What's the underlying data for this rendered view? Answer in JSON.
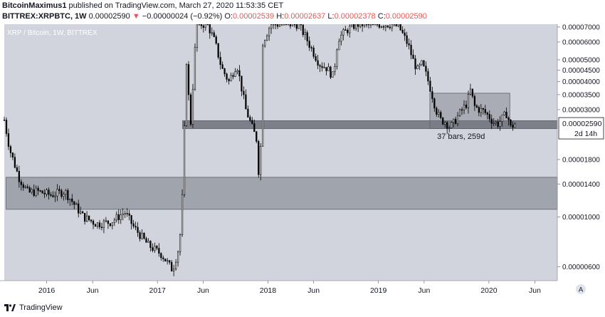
{
  "header": {
    "author": "BitcoinMaximus1",
    "published": "published on TradingView.com, March 27, 2020 11:53:35 CET",
    "symbol": "BITTREX:XRPBTC, 1W",
    "last": "0.00002590",
    "arrow": "▼",
    "change": "−0.00000024 (−0.92%)",
    "o_label": "O:",
    "o_value": "0.00002539",
    "h_label": "H:",
    "h_value": "0.00002637",
    "l_label": "L:",
    "l_value": "0.00002378",
    "c_label": "C:",
    "c_value": "0.00002590"
  },
  "footer": {
    "logo_text": "TradingView"
  },
  "colors": {
    "plot_bg": "#d1d4dc",
    "candle": "#000000",
    "zone_fill": "#787b86",
    "price_label_bg": "#ffffff",
    "header_red": "#ef5350"
  },
  "chart_data": {
    "type": "candlestick",
    "title": "XRP / Bitcoin, 1W, BITTREX",
    "y_scale": "log",
    "ylim": [
      5.2e-06,
      7.2e-05
    ],
    "y_ticks": [
      {
        "v": 7e-05,
        "label": "0.00007000"
      },
      {
        "v": 6e-05,
        "label": "0.00006000"
      },
      {
        "v": 5e-05,
        "label": "0.00005000"
      },
      {
        "v": 4.5e-05,
        "label": "0.00004500"
      },
      {
        "v": 4e-05,
        "label": "0.00004000"
      },
      {
        "v": 3.5e-05,
        "label": "0.00003500"
      },
      {
        "v": 3e-05,
        "label": "0.00003000"
      },
      {
        "v": 1.8e-05,
        "label": "0.00001800"
      },
      {
        "v": 1.4e-05,
        "label": "0.00001400"
      },
      {
        "v": 1e-05,
        "label": "0.00001000"
      },
      {
        "v": 6e-06,
        "label": "0.00000600"
      }
    ],
    "x_ticks": [
      {
        "date": "2016-01-01",
        "label": "2016"
      },
      {
        "date": "2016-06-01",
        "label": "Jun"
      },
      {
        "date": "2017-01-01",
        "label": "2017"
      },
      {
        "date": "2017-06-01",
        "label": "Jun"
      },
      {
        "date": "2018-01-01",
        "label": "2018"
      },
      {
        "date": "2018-06-01",
        "label": "Jun"
      },
      {
        "date": "2019-01-01",
        "label": "2019"
      },
      {
        "date": "2019-06-01",
        "label": "Jun"
      },
      {
        "date": "2020-01-01",
        "label": "2020"
      },
      {
        "date": "2020-06-01",
        "label": "Jun"
      }
    ],
    "x_range": [
      "2015-08-14",
      "2020-08-14"
    ],
    "last_price": {
      "value": 2.59e-05,
      "label": "0.00002590",
      "countdown": "2d 14h"
    },
    "zones": [
      {
        "from": "2017-03-25",
        "to": "2020-08-14",
        "low": 2.47e-05,
        "high": 2.68e-05
      },
      {
        "from": "2015-08-20",
        "to": "2020-08-14",
        "low": 1.08e-05,
        "high": 1.5e-05
      },
      {
        "from": "2019-06-20",
        "to": "2020-03-10",
        "low": 2.47e-05,
        "high": 3.55e-05
      }
    ],
    "annotations": [
      {
        "text": "37 bars, 259d",
        "date": "2019-10-01",
        "value": 2.22e-05
      }
    ],
    "corner_badge": "A",
    "series": [
      {
        "date": "2015-08-14",
        "close": 2.7e-05
      },
      {
        "date": "2015-09-01",
        "close": 2e-05
      },
      {
        "date": "2015-10-01",
        "close": 1.5e-05
      },
      {
        "date": "2015-11-01",
        "close": 1.28e-05
      },
      {
        "date": "2015-12-01",
        "close": 1.3e-05
      },
      {
        "date": "2016-01-15",
        "close": 1.25e-05
      },
      {
        "date": "2016-03-01",
        "close": 1.3e-05
      },
      {
        "date": "2016-05-01",
        "close": 1e-05
      },
      {
        "date": "2016-06-15",
        "close": 9.3e-06
      },
      {
        "date": "2016-08-01",
        "close": 9.5e-06
      },
      {
        "date": "2016-09-15",
        "close": 1.05e-05
      },
      {
        "date": "2016-10-15",
        "close": 9e-06
      },
      {
        "date": "2016-12-01",
        "close": 7.5e-06
      },
      {
        "date": "2017-01-15",
        "close": 6.8e-06
      },
      {
        "date": "2017-02-20",
        "close": 5.8e-06
      },
      {
        "date": "2017-03-15",
        "close": 7.5e-06
      },
      {
        "date": "2017-03-28",
        "close": 1.5e-05
      },
      {
        "date": "2017-04-05",
        "close": 5.5e-05
      },
      {
        "date": "2017-04-20",
        "close": 2.5e-05
      },
      {
        "date": "2017-05-10",
        "close": 7.2e-05
      },
      {
        "date": "2017-06-15",
        "close": 7.2e-05
      },
      {
        "date": "2017-07-10",
        "close": 6e-05
      },
      {
        "date": "2017-08-01",
        "close": 4.6e-05
      },
      {
        "date": "2017-08-25",
        "close": 4e-05
      },
      {
        "date": "2017-09-20",
        "close": 4.8e-05
      },
      {
        "date": "2017-10-20",
        "close": 3e-05
      },
      {
        "date": "2017-11-10",
        "close": 2.5e-05
      },
      {
        "date": "2017-11-25",
        "close": 2.2e-05
      },
      {
        "date": "2017-12-05",
        "close": 1.3e-05
      },
      {
        "date": "2017-12-15",
        "close": 6e-05
      },
      {
        "date": "2018-01-10",
        "close": 7.2e-05
      },
      {
        "date": "2018-02-15",
        "close": 7.2e-05
      },
      {
        "date": "2018-03-15",
        "close": 7.2e-05
      },
      {
        "date": "2018-04-10",
        "close": 7.2e-05
      },
      {
        "date": "2018-05-01",
        "close": 6.5e-05
      },
      {
        "date": "2018-05-25",
        "close": 5.6e-05
      },
      {
        "date": "2018-06-20",
        "close": 4.8e-05
      },
      {
        "date": "2018-07-15",
        "close": 4.6e-05
      },
      {
        "date": "2018-08-05",
        "close": 4.2e-05
      },
      {
        "date": "2018-08-20",
        "close": 6.2e-05
      },
      {
        "date": "2018-09-20",
        "close": 6.8e-05
      },
      {
        "date": "2018-10-20",
        "close": 7.2e-05
      },
      {
        "date": "2018-11-20",
        "close": 7.2e-05
      },
      {
        "date": "2018-12-20",
        "close": 7.2e-05
      },
      {
        "date": "2019-01-20",
        "close": 7.2e-05
      },
      {
        "date": "2019-02-15",
        "close": 7.2e-05
      },
      {
        "date": "2019-03-10",
        "close": 7e-05
      },
      {
        "date": "2019-03-25",
        "close": 6.4e-05
      },
      {
        "date": "2019-04-10",
        "close": 5.8e-05
      },
      {
        "date": "2019-04-25",
        "close": 5e-05
      },
      {
        "date": "2019-05-10",
        "close": 4.5e-05
      },
      {
        "date": "2019-05-25",
        "close": 4.8e-05
      },
      {
        "date": "2019-06-10",
        "close": 4.2e-05
      },
      {
        "date": "2019-06-25",
        "close": 3.6e-05
      },
      {
        "date": "2019-07-10",
        "close": 3e-05
      },
      {
        "date": "2019-07-25",
        "close": 2.7e-05
      },
      {
        "date": "2019-08-10",
        "close": 2.65e-05
      },
      {
        "date": "2019-08-25",
        "close": 2.5e-05
      },
      {
        "date": "2019-09-05",
        "close": 2.6e-05
      },
      {
        "date": "2019-09-20",
        "close": 2.8e-05
      },
      {
        "date": "2019-10-05",
        "close": 3e-05
      },
      {
        "date": "2019-10-20",
        "close": 3.2e-05
      },
      {
        "date": "2019-11-01",
        "close": 3.65e-05
      },
      {
        "date": "2019-11-15",
        "close": 3.1e-05
      },
      {
        "date": "2019-12-01",
        "close": 3e-05
      },
      {
        "date": "2019-12-15",
        "close": 2.95e-05
      },
      {
        "date": "2020-01-01",
        "close": 2.8e-05
      },
      {
        "date": "2020-01-15",
        "close": 2.65e-05
      },
      {
        "date": "2020-02-01",
        "close": 2.6e-05
      },
      {
        "date": "2020-02-15",
        "close": 2.75e-05
      },
      {
        "date": "2020-03-01",
        "close": 2.9e-05
      },
      {
        "date": "2020-03-12",
        "close": 2.5e-05
      },
      {
        "date": "2020-03-27",
        "close": 2.59e-05
      }
    ]
  }
}
